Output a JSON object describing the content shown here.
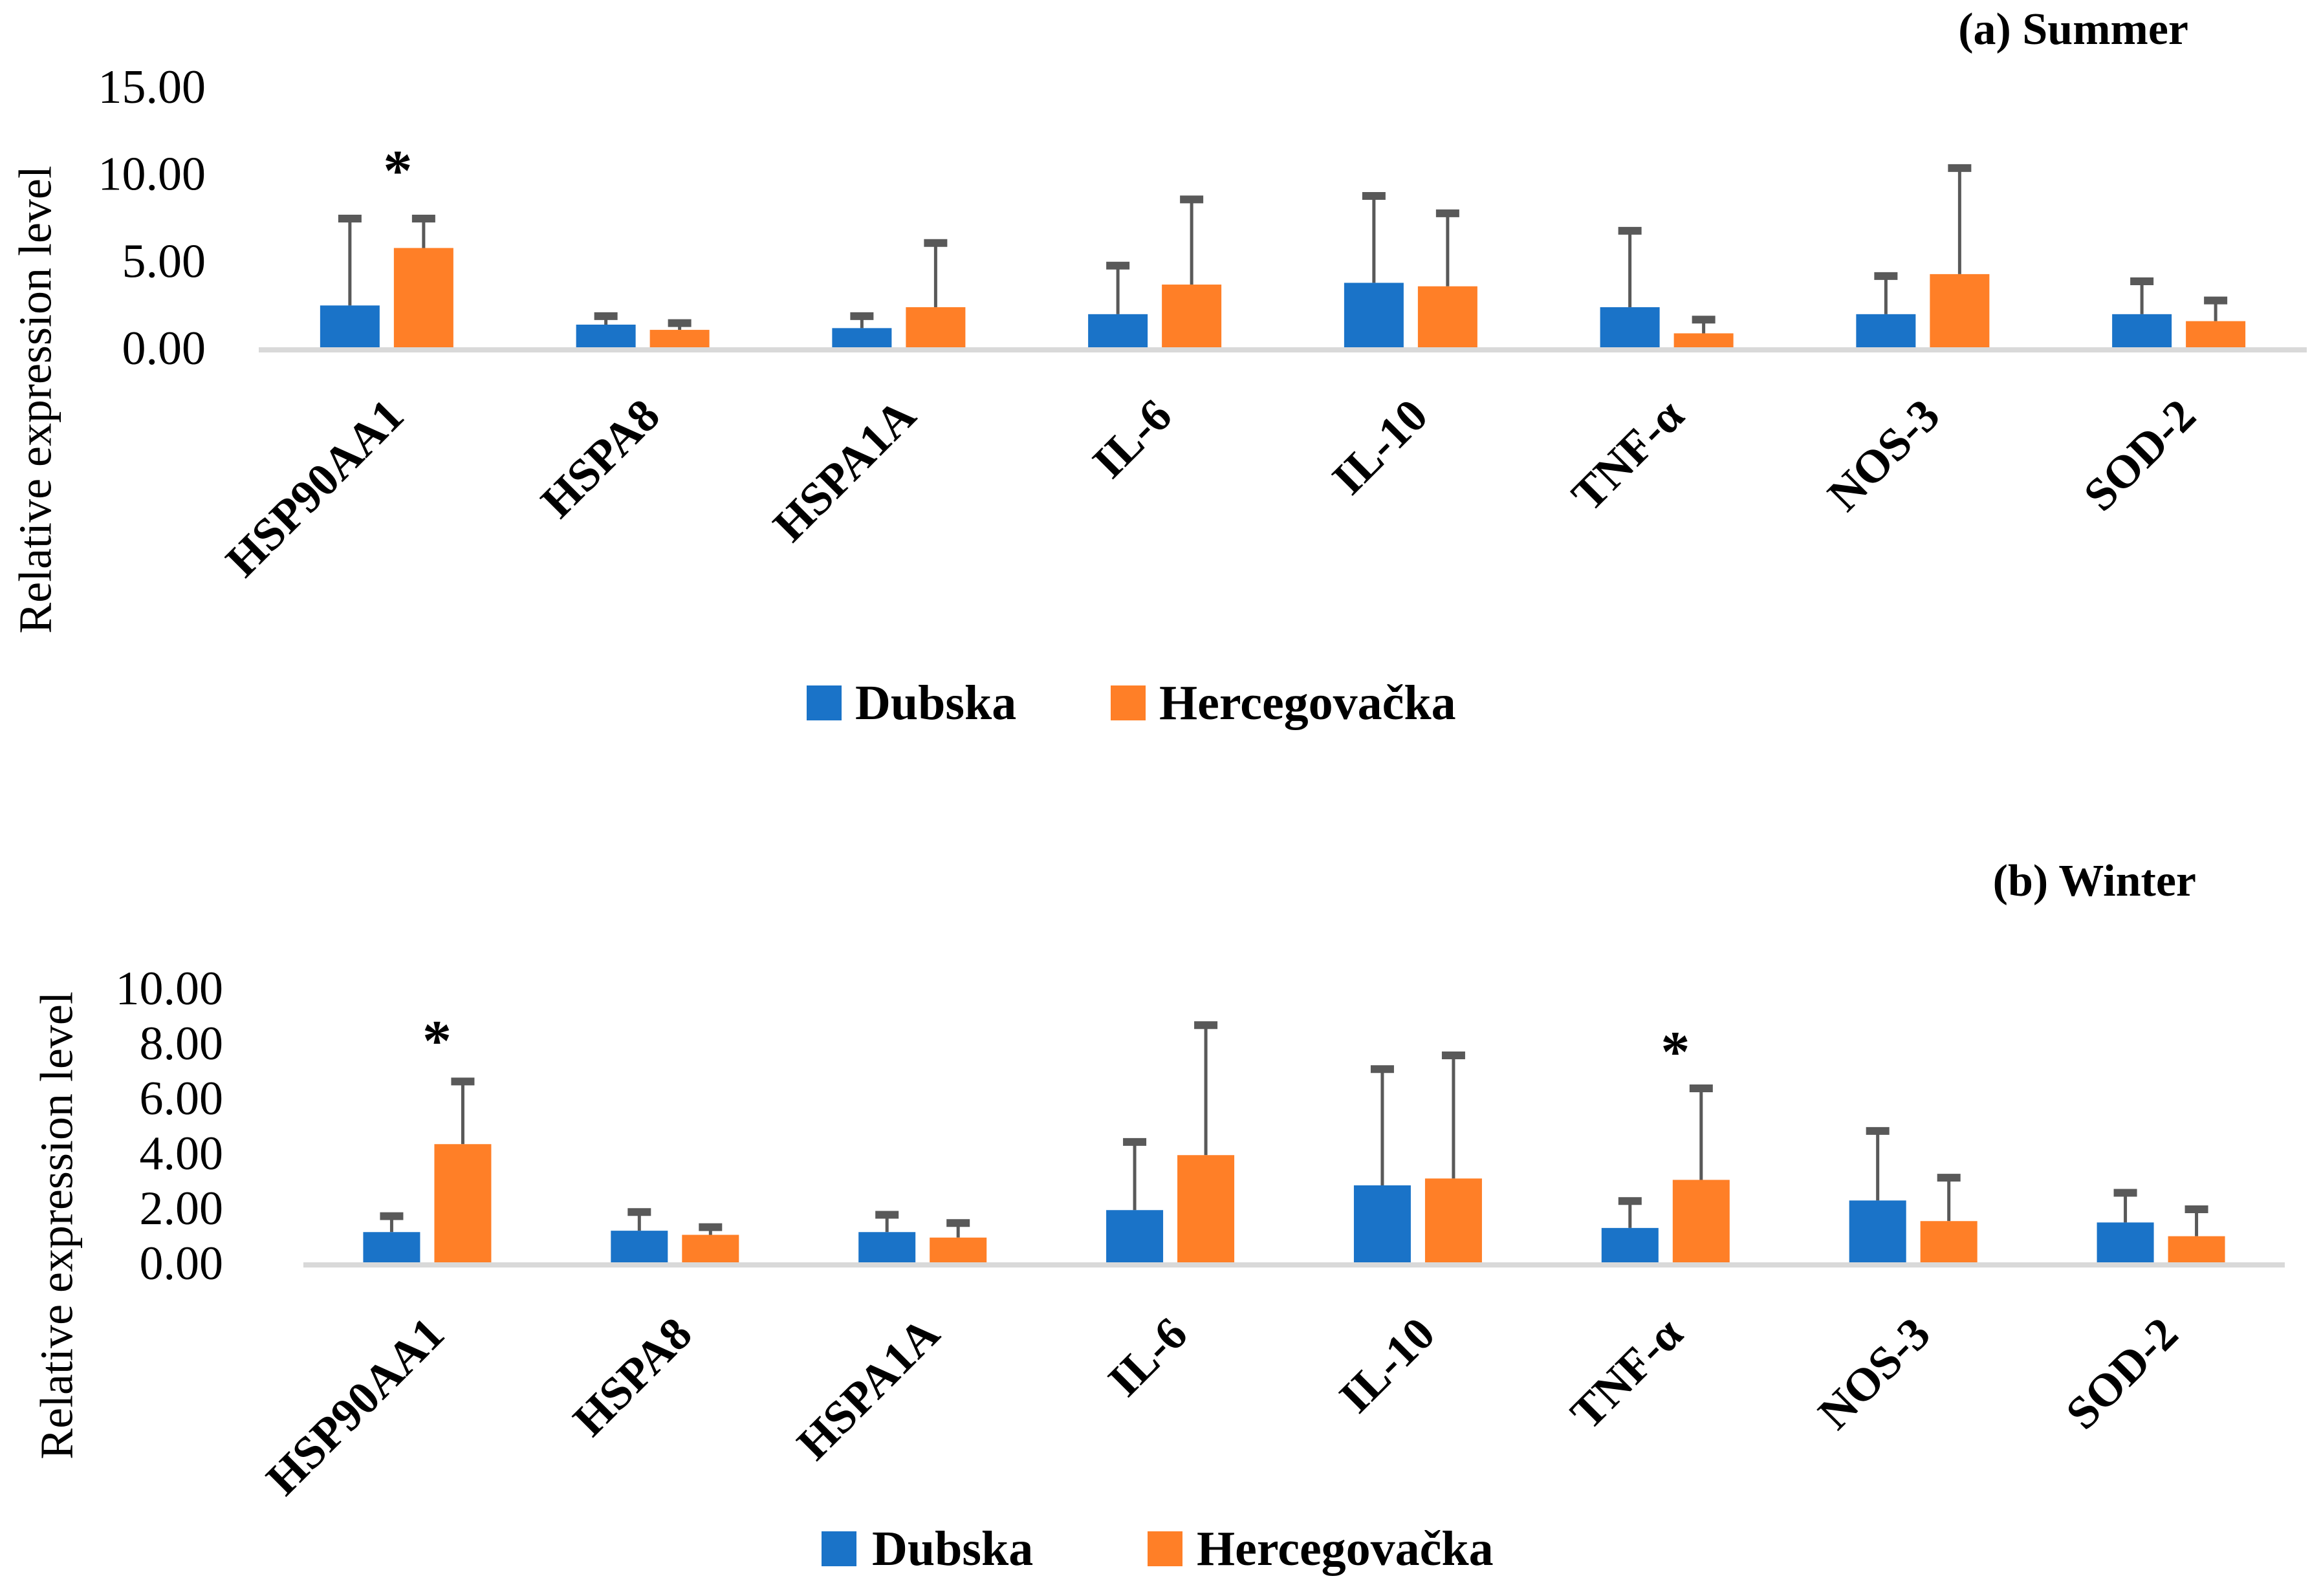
{
  "colors": {
    "Dubska": "#1a73c8",
    "Hercegovačka": "#ff7f27",
    "error_bar": "#595959",
    "axis": "#d9d9d9"
  },
  "chart_data": [
    {
      "type": "bar",
      "title": "(a) Summer",
      "xlabel": "",
      "ylabel": "Relative expression level",
      "ylim": [
        0,
        15
      ],
      "yticks": [
        "0.00",
        "5.00",
        "10.00",
        "15.00"
      ],
      "grid": false,
      "legend_placement": "bottom",
      "categories": [
        "HSP90AA1",
        "HSPA8",
        "HSPA1A",
        "IL-6",
        "IL-10",
        "TNF-α",
        "NOS-3",
        "SOD-2"
      ],
      "series": [
        {
          "name": "Dubska",
          "values": [
            2.4,
            1.3,
            1.1,
            1.9,
            3.7,
            2.3,
            1.9,
            1.9
          ],
          "error_upper": [
            7.5,
            1.9,
            1.9,
            4.8,
            8.8,
            6.8,
            4.2,
            3.9
          ]
        },
        {
          "name": "Hercegovačka",
          "values": [
            5.7,
            1.0,
            2.3,
            3.6,
            3.5,
            0.8,
            4.2,
            1.5
          ],
          "error_upper": [
            7.5,
            1.5,
            6.1,
            8.6,
            7.8,
            1.7,
            10.4,
            2.8
          ]
        }
      ],
      "annotations": [
        {
          "text": "*",
          "category": "HSP90AA1",
          "series": "Hercegovačka",
          "y": 10.5
        }
      ]
    },
    {
      "type": "bar",
      "title": "(b) Winter",
      "xlabel": "",
      "ylabel": "Relative expression level",
      "ylim": [
        0,
        10
      ],
      "yticks": [
        "0.00",
        "2.00",
        "4.00",
        "6.00",
        "8.00",
        "10.00"
      ],
      "grid": false,
      "legend_placement": "bottom",
      "categories": [
        "HSP90AA1",
        "HSPA8",
        "HSPA1A",
        "IL-6",
        "IL-10",
        "TNF-α",
        "NOS-3",
        "SOD-2"
      ],
      "series": [
        {
          "name": "Dubska",
          "values": [
            1.1,
            1.15,
            1.1,
            1.9,
            2.8,
            1.25,
            2.25,
            1.45
          ],
          "error_upper": [
            1.75,
            1.9,
            1.8,
            4.45,
            7.1,
            2.3,
            4.85,
            2.6
          ]
        },
        {
          "name": "Hercegovačka",
          "values": [
            4.3,
            1.0,
            0.9,
            3.9,
            3.05,
            3.0,
            1.5,
            0.95
          ],
          "error_upper": [
            6.65,
            1.35,
            1.5,
            8.7,
            7.6,
            6.4,
            3.15,
            2.0
          ]
        }
      ],
      "annotations": [
        {
          "text": "*",
          "category": "HSP90AA1",
          "series": "Hercegovačka",
          "y": 8.3
        },
        {
          "text": "*",
          "category": "TNF-α",
          "series": "Hercegovačka",
          "y": 7.9
        }
      ]
    }
  ]
}
